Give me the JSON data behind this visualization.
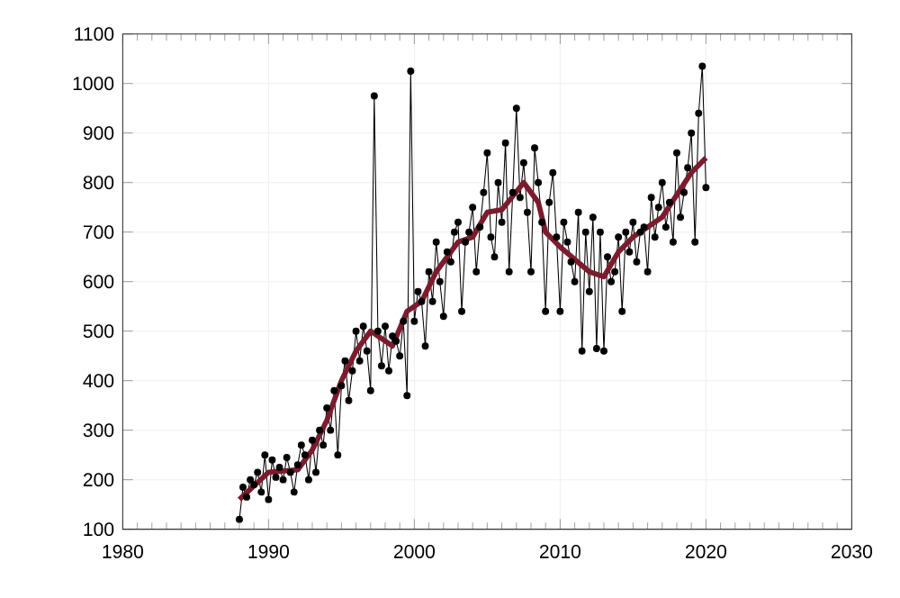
{
  "chart_data": {
    "type": "line",
    "xlim": [
      1980,
      2030
    ],
    "ylim": [
      100,
      1100
    ],
    "xticks": [
      1980,
      1990,
      2000,
      2010,
      2020,
      2030
    ],
    "yticks": [
      100,
      200,
      300,
      400,
      500,
      600,
      700,
      800,
      900,
      1000,
      1100
    ],
    "grid": true,
    "series": [
      {
        "color": "#000000",
        "marker": "circle",
        "x": [
          1988,
          1988.25,
          1988.5,
          1988.75,
          1989,
          1989.25,
          1989.5,
          1989.75,
          1990,
          1990.25,
          1990.5,
          1990.75,
          1991,
          1991.25,
          1991.5,
          1991.75,
          1992,
          1992.25,
          1992.5,
          1992.75,
          1993,
          1993.25,
          1993.5,
          1993.75,
          1994,
          1994.25,
          1994.5,
          1994.75,
          1995,
          1995.25,
          1995.5,
          1995.75,
          1996,
          1996.25,
          1996.5,
          1996.75,
          1997,
          1997.25,
          1997.5,
          1997.75,
          1998,
          1998.25,
          1998.5,
          1998.75,
          1999,
          1999.25,
          1999.5,
          1999.75,
          2000,
          2000.25,
          2000.5,
          2000.75,
          2001,
          2001.25,
          2001.5,
          2001.75,
          2002,
          2002.25,
          2002.5,
          2002.75,
          2003,
          2003.25,
          2003.5,
          2003.75,
          2004,
          2004.25,
          2004.5,
          2004.75,
          2005,
          2005.25,
          2005.5,
          2005.75,
          2006,
          2006.25,
          2006.5,
          2006.75,
          2007,
          2007.25,
          2007.5,
          2007.75,
          2008,
          2008.25,
          2008.5,
          2008.75,
          2009,
          2009.25,
          2009.5,
          2009.75,
          2010,
          2010.25,
          2010.5,
          2010.75,
          2011,
          2011.25,
          2011.5,
          2011.75,
          2012,
          2012.25,
          2012.5,
          2012.75,
          2013,
          2013.25,
          2013.5,
          2013.75,
          2014,
          2014.25,
          2014.5,
          2014.75,
          2015,
          2015.25,
          2015.5,
          2015.75,
          2016,
          2016.25,
          2016.5,
          2016.75,
          2017,
          2017.25,
          2017.5,
          2017.75,
          2018,
          2018.25,
          2018.5,
          2018.75,
          2019,
          2019.25,
          2019.5,
          2019.75,
          2020
        ],
        "values": [
          120,
          185,
          165,
          200,
          190,
          215,
          175,
          250,
          160,
          240,
          205,
          225,
          200,
          245,
          215,
          175,
          230,
          270,
          250,
          200,
          280,
          215,
          300,
          270,
          345,
          300,
          380,
          250,
          390,
          440,
          360,
          420,
          500,
          440,
          510,
          460,
          380,
          975,
          500,
          430,
          510,
          420,
          490,
          480,
          450,
          520,
          370,
          1025,
          520,
          580,
          560,
          470,
          620,
          560,
          680,
          600,
          530,
          660,
          640,
          700,
          720,
          540,
          680,
          700,
          750,
          620,
          710,
          780,
          860,
          690,
          650,
          800,
          720,
          880,
          620,
          780,
          950,
          770,
          840,
          740,
          620,
          870,
          800,
          720,
          540,
          760,
          820,
          690,
          540,
          720,
          680,
          640,
          600,
          740,
          460,
          700,
          580,
          730,
          465,
          700,
          460,
          650,
          600,
          620,
          690,
          540,
          700,
          660,
          720,
          640,
          700,
          710,
          620,
          770,
          690,
          750,
          800,
          710,
          760,
          680,
          860,
          730,
          780,
          830,
          900,
          680,
          940,
          1035,
          790
        ]
      },
      {
        "color": "#7b1c2e",
        "marker": "none",
        "x": [
          1988,
          1990,
          1992,
          1993,
          1994,
          1995,
          1996,
          1997,
          1998.5,
          1999.5,
          2000.5,
          2001.5,
          2003,
          2004,
          2005,
          2006,
          2007.5,
          2008.5,
          2009,
          2010,
          2012,
          2013,
          2014,
          2015,
          2017,
          2019,
          2020
        ],
        "values": [
          160,
          215,
          220,
          260,
          320,
          400,
          460,
          500,
          470,
          540,
          560,
          620,
          680,
          690,
          740,
          745,
          800,
          760,
          700,
          670,
          620,
          610,
          660,
          690,
          730,
          820,
          850
        ]
      }
    ]
  }
}
